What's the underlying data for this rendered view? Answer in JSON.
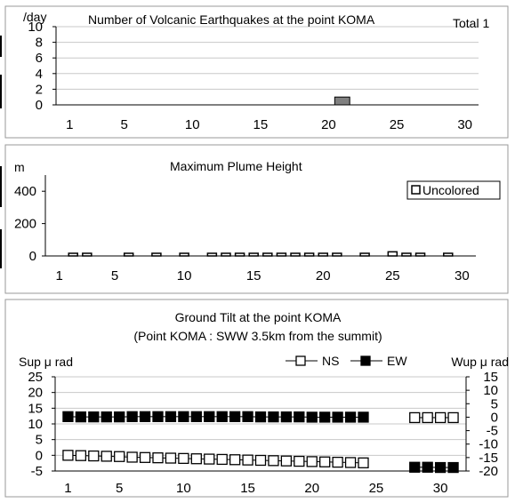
{
  "chart_data": [
    {
      "type": "bar",
      "title": "Number of Volcanic Earthquakes at the point KOMA",
      "total_label": "Total 1",
      "ylabel": "/day",
      "ylim": [
        0,
        10
      ],
      "yticks": [
        0,
        2,
        4,
        6,
        8,
        10
      ],
      "xlim": [
        0,
        31
      ],
      "xticks": [
        1,
        5,
        10,
        15,
        20,
        25,
        30
      ],
      "grid": true,
      "bar_fill": "#808080",
      "series": [
        {
          "name": "",
          "points": [
            {
              "x": 21,
              "y": 1
            }
          ]
        }
      ]
    },
    {
      "type": "bar",
      "title": "Maximum Plume Height",
      "ylabel": "m",
      "ylim": [
        0,
        500
      ],
      "yticks": [
        0,
        200,
        400
      ],
      "xlim": [
        0,
        31
      ],
      "xticks": [
        1,
        5,
        10,
        15,
        20,
        25,
        30
      ],
      "grid": false,
      "legend": {
        "position": "top-right",
        "entries": [
          "Uncolored"
        ]
      },
      "series": [
        {
          "name": "Uncolored",
          "points": [
            {
              "x": 2,
              "y": 0
            },
            {
              "x": 3,
              "y": 0
            },
            {
              "x": 6,
              "y": 0
            },
            {
              "x": 8,
              "y": 0
            },
            {
              "x": 10,
              "y": 0
            },
            {
              "x": 12,
              "y": 0
            },
            {
              "x": 13,
              "y": 0
            },
            {
              "x": 14,
              "y": 0
            },
            {
              "x": 15,
              "y": 0
            },
            {
              "x": 16,
              "y": 0
            },
            {
              "x": 17,
              "y": 0
            },
            {
              "x": 18,
              "y": 0
            },
            {
              "x": 19,
              "y": 0
            },
            {
              "x": 20,
              "y": 0
            },
            {
              "x": 21,
              "y": 0
            },
            {
              "x": 23,
              "y": 0
            },
            {
              "x": 25,
              "y": 20
            },
            {
              "x": 26,
              "y": 10
            },
            {
              "x": 27,
              "y": 0
            },
            {
              "x": 29,
              "y": 10
            }
          ]
        }
      ]
    },
    {
      "type": "line",
      "title": "Ground Tilt at the point KOMA",
      "subtitle": "(Point KOMA : SWW 3.5km from the summit)",
      "ylabel": "Sup μ rad",
      "ylabel_right": "Wup μ rad",
      "ylim": [
        -5,
        25
      ],
      "yticks": [
        -5,
        0,
        5,
        10,
        15,
        20,
        25
      ],
      "ylim_right": [
        -20,
        15
      ],
      "yticks_right": [
        -20,
        -15,
        -10,
        -5,
        0,
        5,
        10,
        15
      ],
      "xlim": [
        0,
        32
      ],
      "xticks": [
        1,
        5,
        10,
        15,
        20,
        25,
        30
      ],
      "grid": true,
      "legend": {
        "position": "top-right",
        "entries": [
          "NS",
          "EW"
        ]
      },
      "series": [
        {
          "name": "NS",
          "axis": "left",
          "marker": "hollow-square",
          "x": [
            1,
            2,
            3,
            4,
            5,
            6,
            7,
            8,
            9,
            10,
            11,
            12,
            13,
            14,
            15,
            16,
            17,
            18,
            19,
            20,
            21,
            22,
            23,
            24,
            28,
            29,
            30,
            31
          ],
          "values": [
            0.0,
            -0.1,
            -0.2,
            -0.3,
            -0.4,
            -0.6,
            -0.7,
            -0.8,
            -0.9,
            -1.0,
            -1.1,
            -1.2,
            -1.3,
            -1.4,
            -1.5,
            -1.6,
            -1.7,
            -1.8,
            -1.9,
            -2.0,
            -2.1,
            -2.2,
            -2.3,
            -2.4,
            12.0,
            12.0,
            12.0,
            12.0
          ]
        },
        {
          "name": "EW",
          "axis": "right",
          "marker": "filled-square",
          "x": [
            1,
            2,
            3,
            4,
            5,
            6,
            7,
            8,
            9,
            10,
            11,
            12,
            13,
            14,
            15,
            16,
            17,
            18,
            19,
            20,
            21,
            22,
            23,
            24,
            28,
            29,
            30,
            31
          ],
          "values": [
            0.2,
            0.1,
            0.1,
            0.1,
            0.1,
            0.2,
            0.2,
            0.2,
            0.2,
            0.2,
            0.2,
            0.2,
            0.2,
            0.2,
            0.2,
            0.1,
            0.1,
            0.1,
            0.1,
            0.0,
            0.0,
            0.0,
            0.0,
            0.0,
            -18.6,
            -18.6,
            -18.7,
            -18.7
          ]
        }
      ]
    }
  ]
}
